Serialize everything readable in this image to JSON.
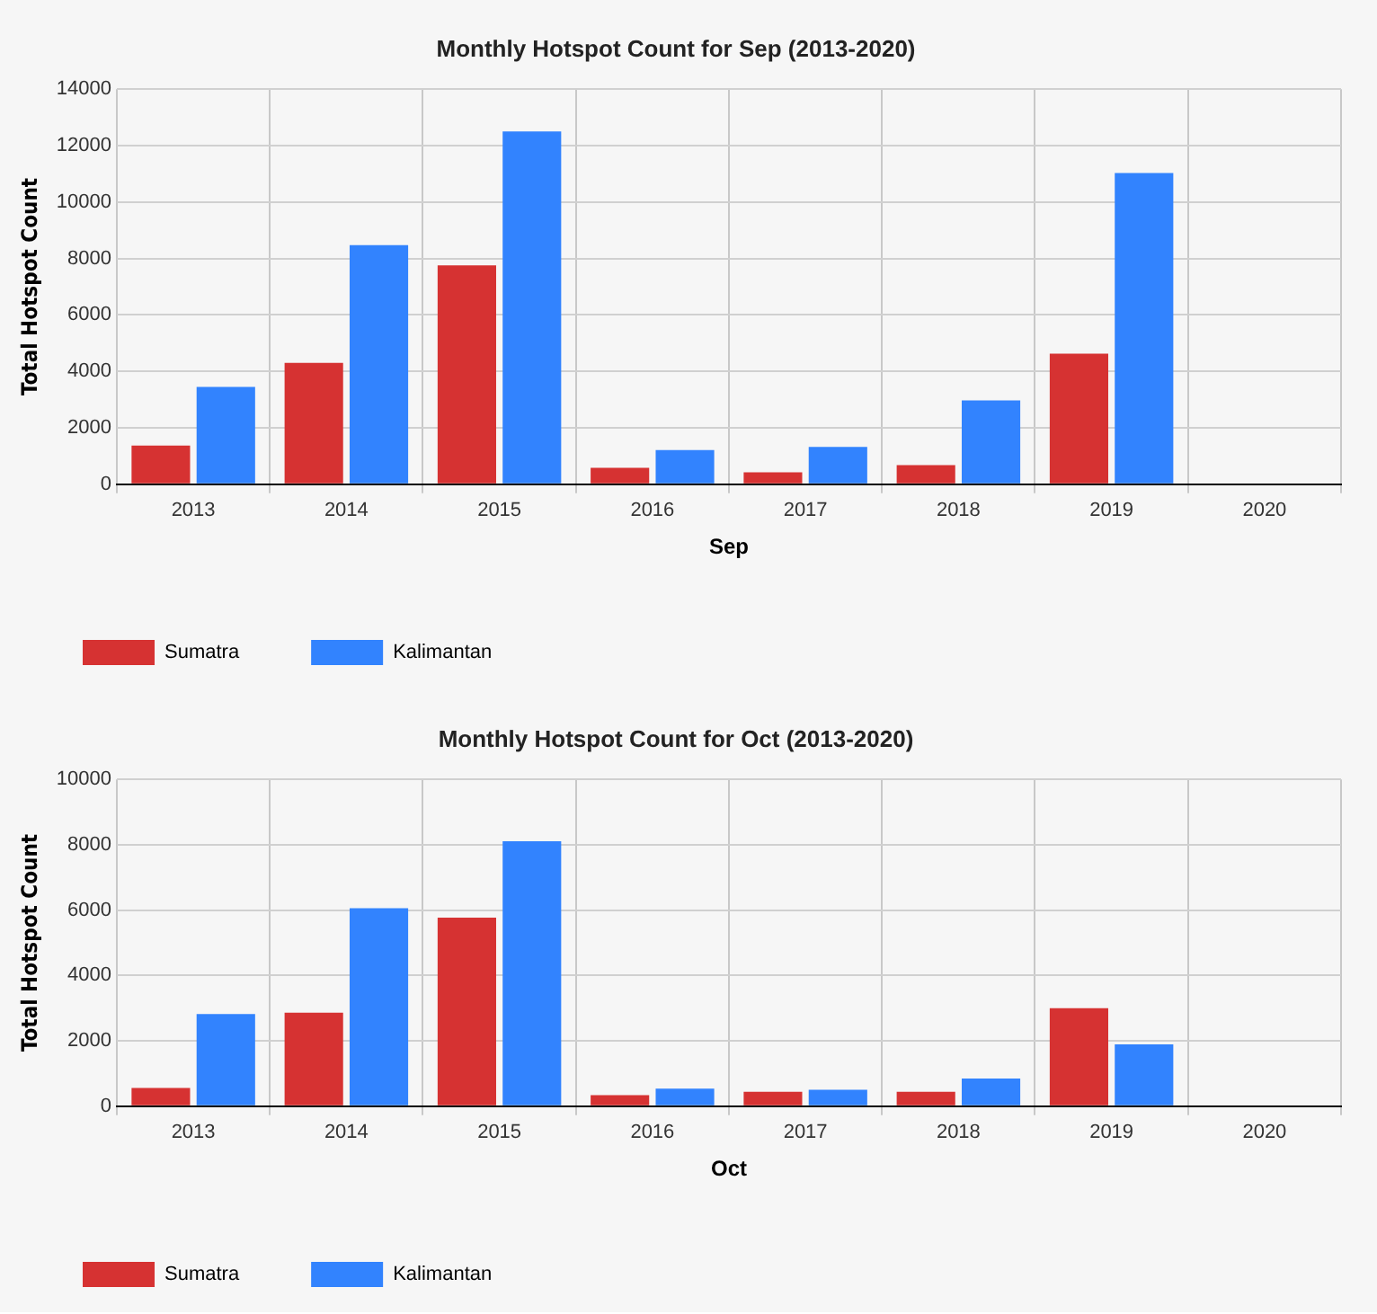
{
  "chart_data": [
    {
      "type": "bar",
      "title": "Monthly Hotspot Count for Sep (2013-2020)",
      "xlabel": "Sep",
      "ylabel": "Total Hotspot Count",
      "categories": [
        "2013",
        "2014",
        "2015",
        "2016",
        "2017",
        "2018",
        "2019",
        "2020"
      ],
      "series": [
        {
          "name": "Sumatra",
          "color": "#d63232",
          "values": [
            1370,
            4300,
            7760,
            580,
            420,
            680,
            4630,
            0
          ]
        },
        {
          "name": "Kalimantan",
          "color": "#3283fe",
          "values": [
            3450,
            8470,
            12500,
            1210,
            1320,
            2970,
            11030,
            0
          ]
        }
      ],
      "ylim": [
        0,
        14000
      ],
      "yticks": [
        0,
        2000,
        4000,
        6000,
        8000,
        10000,
        12000,
        14000
      ],
      "grid": true,
      "legend": "bottom"
    },
    {
      "type": "bar",
      "title": "Monthly Hotspot Count for Oct (2013-2020)",
      "xlabel": "Oct",
      "ylabel": "Total Hotspot Count",
      "categories": [
        "2013",
        "2014",
        "2015",
        "2016",
        "2017",
        "2018",
        "2019",
        "2020"
      ],
      "series": [
        {
          "name": "Sumatra",
          "color": "#d63232",
          "values": [
            560,
            2860,
            5770,
            340,
            440,
            440,
            3000,
            0
          ]
        },
        {
          "name": "Kalimantan",
          "color": "#3283fe",
          "values": [
            2820,
            6060,
            8110,
            540,
            500,
            850,
            1890,
            0
          ]
        }
      ],
      "ylim": [
        0,
        10000
      ],
      "yticks": [
        0,
        2000,
        4000,
        6000,
        8000,
        10000
      ],
      "grid": true,
      "legend": "bottom"
    }
  ]
}
